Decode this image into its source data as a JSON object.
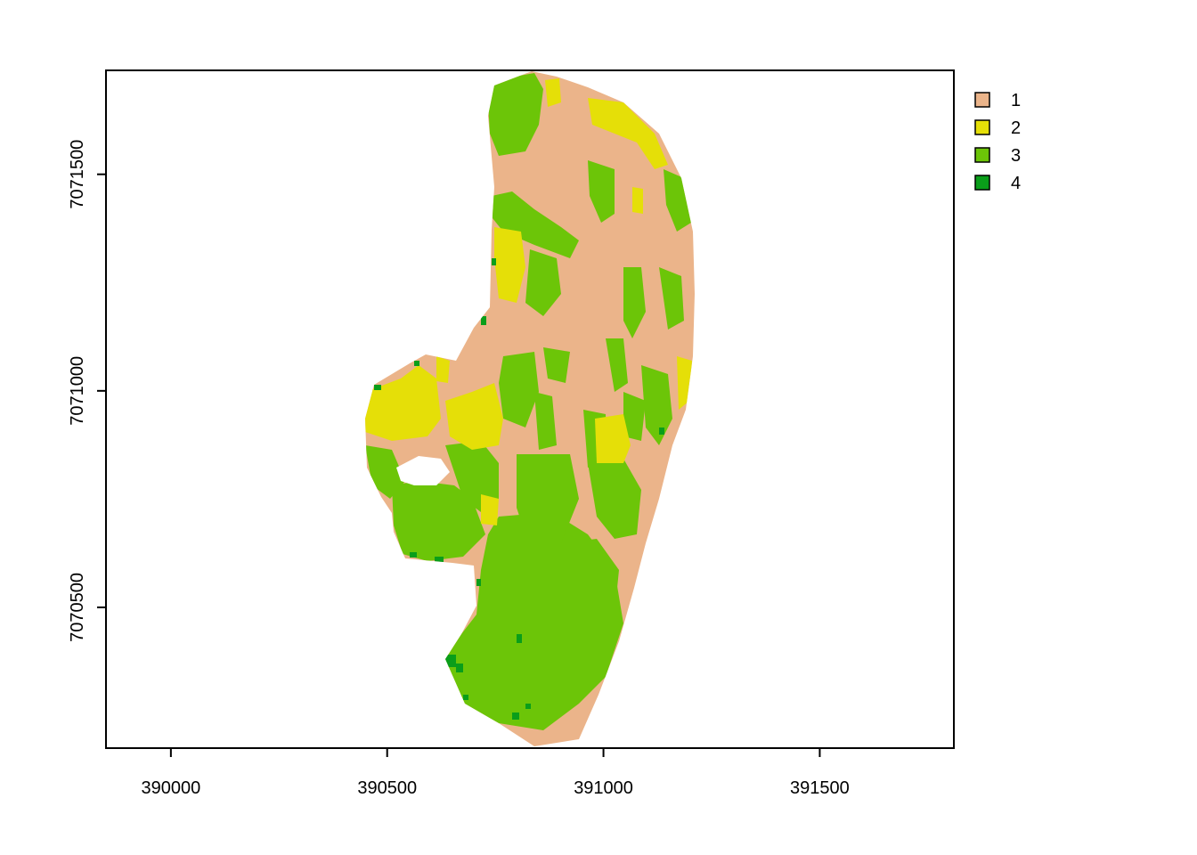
{
  "map": {
    "x_ticks": [
      "390000",
      "390500",
      "391000",
      "391500"
    ],
    "y_ticks": [
      "7070500",
      "7071000",
      "7071500"
    ],
    "xlim": [
      389850,
      391810
    ],
    "ylim": [
      7070175,
      7071740
    ]
  },
  "legend": {
    "items": [
      {
        "label": "1",
        "color": "#EBB48A"
      },
      {
        "label": "2",
        "color": "#E5DF08"
      },
      {
        "label": "3",
        "color": "#6CC508"
      },
      {
        "label": "4",
        "color": "#0A9E1A"
      }
    ]
  },
  "colors": {
    "class1": "#EBB48A",
    "class2": "#E5DF08",
    "class3": "#6CC508",
    "class4": "#0A9E1A"
  }
}
